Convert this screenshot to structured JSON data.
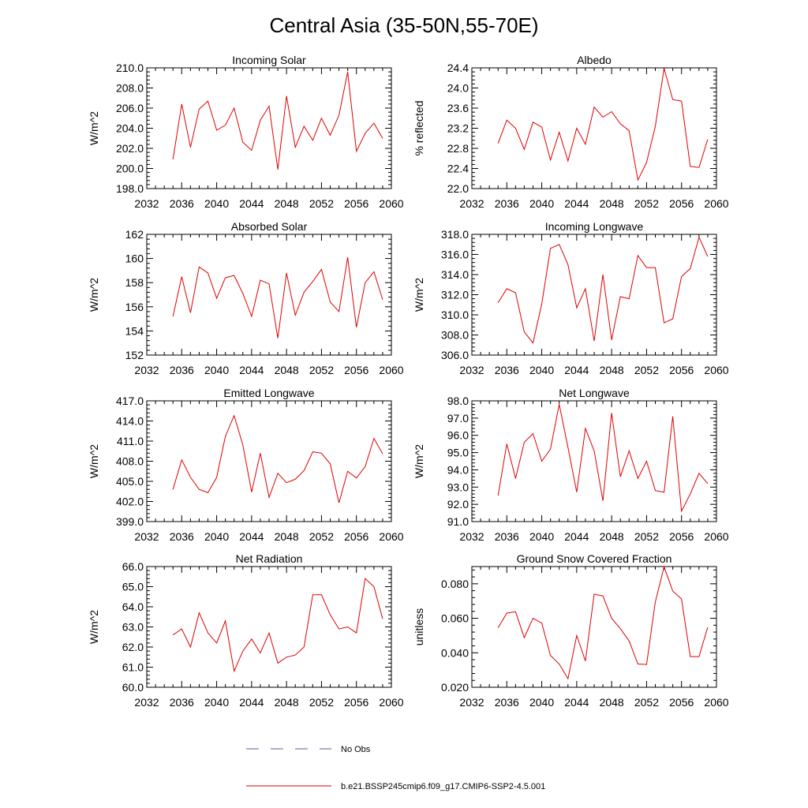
{
  "figure_title": "Central Asia (35-50N,55-70E)",
  "legend": [
    {
      "label": "No Obs",
      "color": "#5a5aa8",
      "style": "dashed"
    },
    {
      "label": "b.e21.BSSP245cmip6.f09_g17.CMIP6-SSP2-4.5.001",
      "color": "#e00000",
      "style": "solid"
    }
  ],
  "series_color": "#e00000",
  "chart_data": [
    {
      "type": "line",
      "title": "Incoming Solar",
      "ylabel": "W/m^2",
      "xlim": [
        2032,
        2060
      ],
      "ylim": [
        198.0,
        210.0
      ],
      "xticks": [
        "2032",
        "2036",
        "2040",
        "2044",
        "2048",
        "2052",
        "2056",
        "2060"
      ],
      "yticks": [
        "198.0",
        "200.0",
        "202.0",
        "204.0",
        "206.0",
        "208.0",
        "210.0"
      ],
      "x": [
        2035,
        2036,
        2037,
        2038,
        2039,
        2040,
        2041,
        2042,
        2043,
        2044,
        2045,
        2046,
        2047,
        2048,
        2049,
        2050,
        2051,
        2052,
        2053,
        2054,
        2055,
        2056,
        2057,
        2058,
        2059
      ],
      "series": [
        {
          "values": [
            200.9,
            206.4,
            202.1,
            205.9,
            206.7,
            203.8,
            204.3,
            206.0,
            202.6,
            201.8,
            204.8,
            206.2,
            199.9,
            207.2,
            202.1,
            204.2,
            202.8,
            205.0,
            203.3,
            205.3,
            209.6,
            201.7,
            203.5,
            204.5,
            203.0
          ]
        }
      ]
    },
    {
      "type": "line",
      "title": "Albedo",
      "ylabel": "% reflected",
      "xlim": [
        2032,
        2060
      ],
      "ylim": [
        22.0,
        24.4
      ],
      "xticks": [
        "2032",
        "2036",
        "2040",
        "2044",
        "2048",
        "2052",
        "2056",
        "2060"
      ],
      "yticks": [
        "22.0",
        "22.4",
        "22.8",
        "23.2",
        "23.6",
        "24.0",
        "24.4"
      ],
      "x": [
        2035,
        2036,
        2037,
        2038,
        2039,
        2040,
        2041,
        2042,
        2043,
        2044,
        2045,
        2046,
        2047,
        2048,
        2049,
        2050,
        2051,
        2052,
        2053,
        2054,
        2055,
        2056,
        2057,
        2058,
        2059
      ],
      "series": [
        {
          "values": [
            22.9,
            23.36,
            23.2,
            22.78,
            23.32,
            23.22,
            22.57,
            23.12,
            22.55,
            23.2,
            22.88,
            23.62,
            23.42,
            23.53,
            23.29,
            23.15,
            22.17,
            22.52,
            23.24,
            24.39,
            23.77,
            23.74,
            22.44,
            22.42,
            22.98
          ]
        }
      ]
    },
    {
      "type": "line",
      "title": "Absorbed Solar",
      "ylabel": "W/m^2",
      "xlim": [
        2032,
        2060
      ],
      "ylim": [
        152,
        162
      ],
      "xticks": [
        "2032",
        "2036",
        "2040",
        "2044",
        "2048",
        "2052",
        "2056",
        "2060"
      ],
      "yticks": [
        "152",
        "154",
        "156",
        "158",
        "160",
        "162"
      ],
      "x": [
        2035,
        2036,
        2037,
        2038,
        2039,
        2040,
        2041,
        2042,
        2043,
        2044,
        2045,
        2046,
        2047,
        2048,
        2049,
        2050,
        2051,
        2052,
        2053,
        2054,
        2055,
        2056,
        2057,
        2058,
        2059
      ],
      "series": [
        {
          "values": [
            155.2,
            158.5,
            155.5,
            159.3,
            158.8,
            156.7,
            158.4,
            158.6,
            157.1,
            155.2,
            158.2,
            157.9,
            153.4,
            158.8,
            155.3,
            157.2,
            158.1,
            159.1,
            156.4,
            155.6,
            160.1,
            154.3,
            158.0,
            158.9,
            156.6
          ]
        }
      ]
    },
    {
      "type": "line",
      "title": "Incoming Longwave",
      "ylabel": "W/m^2",
      "xlim": [
        2032,
        2060
      ],
      "ylim": [
        306.0,
        318.0
      ],
      "xticks": [
        "2032",
        "2036",
        "2040",
        "2044",
        "2048",
        "2052",
        "2056",
        "2060"
      ],
      "yticks": [
        "306.0",
        "308.0",
        "310.0",
        "312.0",
        "314.0",
        "316.0",
        "318.0"
      ],
      "x": [
        2035,
        2036,
        2037,
        2038,
        2039,
        2040,
        2041,
        2042,
        2043,
        2044,
        2045,
        2046,
        2047,
        2048,
        2049,
        2050,
        2051,
        2052,
        2053,
        2054,
        2055,
        2056,
        2057,
        2058,
        2059
      ],
      "series": [
        {
          "values": [
            311.2,
            312.6,
            312.2,
            308.3,
            307.2,
            311.1,
            316.6,
            317.0,
            315.0,
            310.7,
            312.6,
            307.4,
            314.0,
            307.5,
            311.8,
            311.6,
            315.9,
            314.7,
            314.7,
            309.2,
            309.6,
            313.8,
            314.6,
            317.7,
            315.8
          ]
        }
      ]
    },
    {
      "type": "line",
      "title": "Emitted Longwave",
      "ylabel": "W/m^2",
      "xlim": [
        2032,
        2060
      ],
      "ylim": [
        399.0,
        417.0
      ],
      "xticks": [
        "2032",
        "2036",
        "2040",
        "2044",
        "2048",
        "2052",
        "2056",
        "2060"
      ],
      "yticks": [
        "399.0",
        "402.0",
        "405.0",
        "408.0",
        "411.0",
        "414.0",
        "417.0"
      ],
      "x": [
        2035,
        2036,
        2037,
        2038,
        2039,
        2040,
        2041,
        2042,
        2043,
        2044,
        2045,
        2046,
        2047,
        2048,
        2049,
        2050,
        2051,
        2052,
        2053,
        2054,
        2055,
        2056,
        2057,
        2058,
        2059
      ],
      "series": [
        {
          "values": [
            403.8,
            408.2,
            405.6,
            403.8,
            403.3,
            405.6,
            411.7,
            414.8,
            410.4,
            403.4,
            409.2,
            402.6,
            406.2,
            404.8,
            405.3,
            406.6,
            409.4,
            409.2,
            407.6,
            401.8,
            406.5,
            405.5,
            407.2,
            411.4,
            409.1
          ]
        }
      ]
    },
    {
      "type": "line",
      "title": "Net Longwave",
      "ylabel": "W/m^2",
      "xlim": [
        2032,
        2060
      ],
      "ylim": [
        91.0,
        98.0
      ],
      "xticks": [
        "2032",
        "2036",
        "2040",
        "2044",
        "2048",
        "2052",
        "2056",
        "2060"
      ],
      "yticks": [
        "91.0",
        "92.0",
        "93.0",
        "94.0",
        "95.0",
        "96.0",
        "97.0",
        "98.0"
      ],
      "x": [
        2035,
        2036,
        2037,
        2038,
        2039,
        2040,
        2041,
        2042,
        2043,
        2044,
        2045,
        2046,
        2047,
        2048,
        2049,
        2050,
        2051,
        2052,
        2053,
        2054,
        2055,
        2056,
        2057,
        2058,
        2059
      ],
      "series": [
        {
          "values": [
            92.5,
            95.5,
            93.5,
            95.6,
            96.1,
            94.5,
            95.2,
            97.8,
            95.3,
            92.7,
            96.4,
            95.1,
            92.2,
            97.3,
            93.6,
            95.1,
            93.5,
            94.5,
            92.8,
            92.7,
            97.1,
            91.6,
            92.6,
            93.8,
            93.2
          ]
        }
      ]
    },
    {
      "type": "line",
      "title": "Net Radiation",
      "ylabel": "W/m^2",
      "xlim": [
        2032,
        2060
      ],
      "ylim": [
        60.0,
        66.0
      ],
      "xticks": [
        "2032",
        "2036",
        "2040",
        "2044",
        "2048",
        "2052",
        "2056",
        "2060"
      ],
      "yticks": [
        "60.0",
        "61.0",
        "62.0",
        "63.0",
        "64.0",
        "65.0",
        "66.0"
      ],
      "x": [
        2035,
        2036,
        2037,
        2038,
        2039,
        2040,
        2041,
        2042,
        2043,
        2044,
        2045,
        2046,
        2047,
        2048,
        2049,
        2050,
        2051,
        2052,
        2053,
        2054,
        2055,
        2056,
        2057,
        2058,
        2059
      ],
      "series": [
        {
          "values": [
            62.6,
            62.9,
            62.0,
            63.7,
            62.7,
            62.2,
            63.3,
            60.8,
            61.8,
            62.4,
            61.7,
            62.7,
            61.2,
            61.5,
            61.6,
            62.0,
            64.6,
            64.6,
            63.6,
            62.9,
            63.0,
            62.7,
            65.4,
            65.0,
            63.4
          ]
        }
      ]
    },
    {
      "type": "line",
      "title": "Ground Snow Covered Fraction",
      "ylabel": "unitless",
      "xlim": [
        2032,
        2060
      ],
      "ylim": [
        0.02,
        0.09
      ],
      "xticks": [
        "2032",
        "2036",
        "2040",
        "2044",
        "2048",
        "2052",
        "2056",
        "2060"
      ],
      "yticks": [
        "0.020",
        "0.040",
        "0.060",
        "0.080"
      ],
      "ytick_values": [
        0.02,
        0.04,
        0.06,
        0.08
      ],
      "x": [
        2035,
        2036,
        2037,
        2038,
        2039,
        2040,
        2041,
        2042,
        2043,
        2044,
        2045,
        2046,
        2047,
        2048,
        2049,
        2050,
        2051,
        2052,
        2053,
        2054,
        2055,
        2056,
        2057,
        2058,
        2059
      ],
      "series": [
        {
          "values": [
            0.0545,
            0.063,
            0.0638,
            0.0488,
            0.06,
            0.0572,
            0.0385,
            0.0335,
            0.025,
            0.05,
            0.0352,
            0.074,
            0.073,
            0.06,
            0.054,
            0.0468,
            0.0335,
            0.0332,
            0.0695,
            0.0898,
            0.0758,
            0.0712,
            0.0378,
            0.0378,
            0.0548
          ]
        }
      ]
    }
  ]
}
